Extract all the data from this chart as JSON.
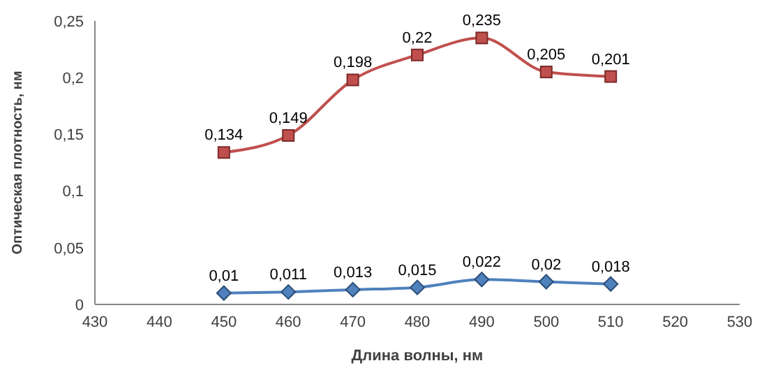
{
  "chart_data": {
    "type": "line",
    "xlabel": "Длина волны, нм",
    "ylabel": "Оптическая плотность, нм",
    "x": [
      450,
      460,
      470,
      480,
      490,
      500,
      510
    ],
    "series": [
      {
        "color": "#c0504d",
        "marker": "square",
        "values": [
          0.134,
          0.149,
          0.198,
          0.22,
          0.235,
          0.205,
          0.201
        ],
        "value_labels": [
          "0,134",
          "0,149",
          "0,198",
          "0,22",
          "0,235",
          "0,205",
          "0,201"
        ]
      },
      {
        "color": "#4f81bd",
        "marker": "diamond",
        "values": [
          0.01,
          0.011,
          0.013,
          0.015,
          0.022,
          0.02,
          0.018
        ],
        "value_labels": [
          "0,01",
          "0,011",
          "0,013",
          "0,015",
          "0,022",
          "0,02",
          "0,018"
        ]
      }
    ],
    "xlim": [
      430,
      530
    ],
    "xticks": [
      430,
      440,
      450,
      460,
      470,
      480,
      490,
      500,
      510,
      520,
      530
    ],
    "ylim": [
      0,
      0.25
    ],
    "yticks": [
      {
        "value": 0,
        "label": "0"
      },
      {
        "value": 0.05,
        "label": "0,05"
      },
      {
        "value": 0.1,
        "label": "0,1"
      },
      {
        "value": 0.15,
        "label": "0,15"
      },
      {
        "value": 0.2,
        "label": "0,2"
      },
      {
        "value": 0.25,
        "label": "0,25"
      }
    ],
    "grid": false,
    "legend": false
  }
}
